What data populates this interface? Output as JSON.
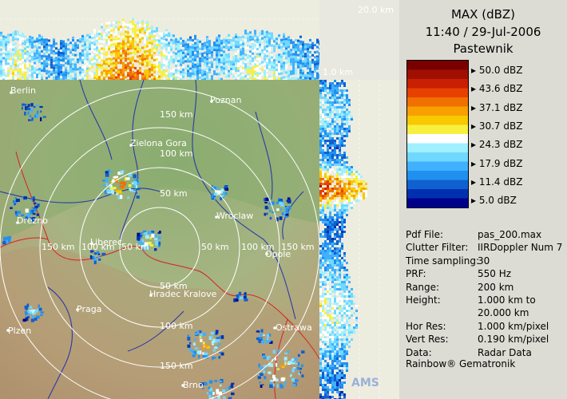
{
  "map": {
    "scale_top_max": "20.0 km",
    "scale_side_min": "1.0 km",
    "cities": [
      {
        "name": "Berlin"
      },
      {
        "name": "Poznan"
      },
      {
        "name": "Zielona Gora"
      },
      {
        "name": "Drezno"
      },
      {
        "name": "Wroclaw"
      },
      {
        "name": "Opole"
      },
      {
        "name": "Hradec Kralove"
      },
      {
        "name": "Praga"
      },
      {
        "name": "Plzen"
      },
      {
        "name": "Ostrawa"
      },
      {
        "name": "Brno"
      },
      {
        "name": "Liberec"
      }
    ],
    "range_labels": {
      "r50": "50 km",
      "r100": "100 km",
      "r150": "150 km"
    },
    "watermark": "AMS"
  },
  "panel": {
    "title": "MAX (dBZ)",
    "datetime": "11:40 / 29-Jul-2006",
    "station": "Pastewnik",
    "legend": [
      {
        "label": "50.0 dBZ"
      },
      {
        "label": "43.6 dBZ"
      },
      {
        "label": "37.1 dBZ"
      },
      {
        "label": "30.7 dBZ"
      },
      {
        "label": "24.3 dBZ"
      },
      {
        "label": "17.9 dBZ"
      },
      {
        "label": "11.4 dBZ"
      },
      {
        "label": "5.0 dBZ"
      }
    ],
    "legend_colors": [
      "#7a0000",
      "#a01000",
      "#c82000",
      "#e84000",
      "#f07000",
      "#f8a000",
      "#f8c800",
      "#f8f040",
      "#ffffff",
      "#a0f0ff",
      "#70d8ff",
      "#40b0ff",
      "#2090f0",
      "#1060d0",
      "#0030b0",
      "#00008a"
    ],
    "info": [
      {
        "key": "Pdf File:",
        "value": "pas_200.max"
      },
      {
        "key": "Clutter Filter:",
        "value": "IIRDoppler Num 7"
      },
      {
        "key": "Time sampling:",
        "value": "30"
      },
      {
        "key": "PRF:",
        "value": "550 Hz"
      },
      {
        "key": "Range:",
        "value": "200 km"
      },
      {
        "key": "Height:",
        "value": "1.000 km to"
      },
      {
        "key": "",
        "value": "20.000 km"
      },
      {
        "key": "Hor Res:",
        "value": "1.000 km/pixel"
      },
      {
        "key": "Vert Res:",
        "value": "0.190 km/pixel"
      },
      {
        "key": "Data:",
        "value": "Radar Data"
      }
    ],
    "footer": "Rainbow® Gematronik"
  }
}
